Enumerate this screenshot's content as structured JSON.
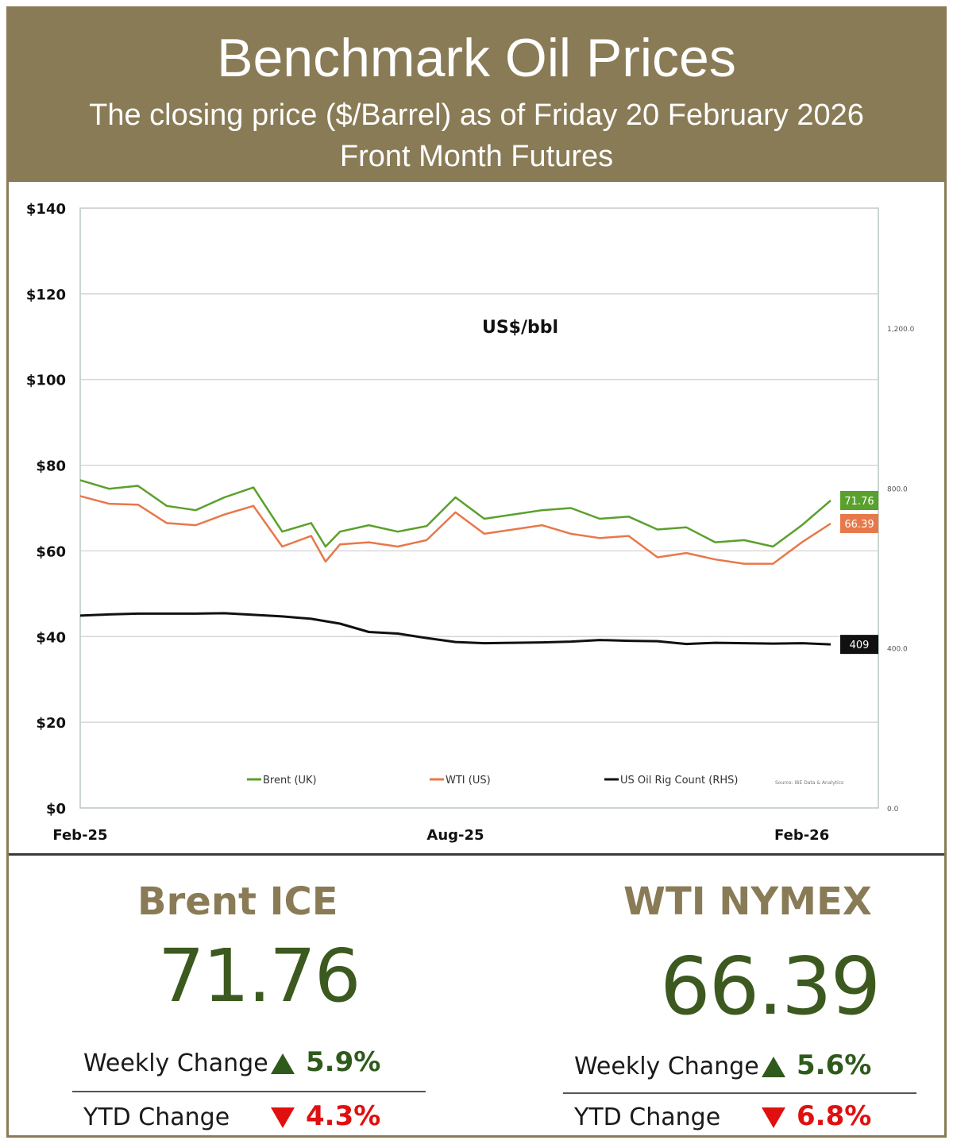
{
  "header": {
    "title": "Benchmark Oil Prices",
    "subtitle": "The closing price ($/Barrel) as of Friday 20 February 2026",
    "subtitle2": "Front Month  Futures"
  },
  "colors": {
    "header_bg": "#8a7b57",
    "brent": "#5aa02c",
    "wti": "#e8784a",
    "rig": "#111111",
    "up": "#2e5a1c",
    "down": "#e01010",
    "value_text": "#3c5a1f"
  },
  "chart_data": {
    "type": "line",
    "title": "US$/bbl",
    "x_labels": [
      "Feb-25",
      "Aug-25",
      "Feb-26"
    ],
    "x_range": [
      "2025-02-21",
      "2026-02-20"
    ],
    "ylim": [
      0,
      140
    ],
    "y_ticks": [
      "$0",
      "$20",
      "$40",
      "$60",
      "$80",
      "$100",
      "$120",
      "$140"
    ],
    "y2_ticks": [
      "0.0",
      "400.0",
      "800.0",
      "1,200.0"
    ],
    "y2lim": [
      0,
      1500
    ],
    "grid": true,
    "legend_position": "bottom",
    "source_note": "Source: IBE Data & Analytics",
    "series": [
      {
        "name": "Brent (UK)",
        "axis": "left",
        "color": "#5aa02c",
        "end_label": "71.76",
        "x": [
          "2025-02-21",
          "2025-03-07",
          "2025-03-21",
          "2025-04-04",
          "2025-04-18",
          "2025-05-02",
          "2025-05-16",
          "2025-05-30",
          "2025-06-13",
          "2025-06-20",
          "2025-06-27",
          "2025-07-11",
          "2025-07-25",
          "2025-08-08",
          "2025-08-22",
          "2025-09-05",
          "2025-09-19",
          "2025-10-03",
          "2025-10-17",
          "2025-10-31",
          "2025-11-14",
          "2025-11-28",
          "2025-12-12",
          "2025-12-26",
          "2026-01-09",
          "2026-01-23",
          "2026-02-06",
          "2026-02-20"
        ],
        "y": [
          76.5,
          74.5,
          75.2,
          70.5,
          69.5,
          72.5,
          74.8,
          64.5,
          66.5,
          61.0,
          64.5,
          66.0,
          64.5,
          65.8,
          72.5,
          67.5,
          68.5,
          69.5,
          70.0,
          67.5,
          68.0,
          65.0,
          65.5,
          62.0,
          62.5,
          61.0,
          66.0,
          71.76
        ]
      },
      {
        "name": "WTI (US)",
        "axis": "left",
        "color": "#e8784a",
        "end_label": "66.39",
        "x": [
          "2025-02-21",
          "2025-03-07",
          "2025-03-21",
          "2025-04-04",
          "2025-04-18",
          "2025-05-02",
          "2025-05-16",
          "2025-05-30",
          "2025-06-13",
          "2025-06-20",
          "2025-06-27",
          "2025-07-11",
          "2025-07-25",
          "2025-08-08",
          "2025-08-22",
          "2025-09-05",
          "2025-09-19",
          "2025-10-03",
          "2025-10-17",
          "2025-10-31",
          "2025-11-14",
          "2025-11-28",
          "2025-12-12",
          "2025-12-26",
          "2026-01-09",
          "2026-01-23",
          "2026-02-06",
          "2026-02-20"
        ],
        "y": [
          72.8,
          71.0,
          70.8,
          66.5,
          66.0,
          68.5,
          70.5,
          61.0,
          63.5,
          57.5,
          61.5,
          62.0,
          61.0,
          62.5,
          69.0,
          64.0,
          65.0,
          66.0,
          64.0,
          63.0,
          63.5,
          58.5,
          59.5,
          58.0,
          57.0,
          57.0,
          62.0,
          66.39
        ]
      },
      {
        "name": "US Oil Rig Count (RHS)",
        "axis": "right",
        "color": "#111111",
        "end_label": "409",
        "x": [
          "2025-02-21",
          "2025-03-07",
          "2025-03-21",
          "2025-04-04",
          "2025-04-18",
          "2025-05-02",
          "2025-05-16",
          "2025-05-30",
          "2025-06-13",
          "2025-06-27",
          "2025-07-11",
          "2025-07-25",
          "2025-08-08",
          "2025-08-22",
          "2025-09-05",
          "2025-09-19",
          "2025-10-03",
          "2025-10-17",
          "2025-10-31",
          "2025-11-14",
          "2025-11-28",
          "2025-12-12",
          "2025-12-26",
          "2026-01-09",
          "2026-01-23",
          "2026-02-06",
          "2026-02-20"
        ],
        "y": [
          481,
          484,
          486,
          486,
          486,
          487,
          483,
          479,
          473,
          461,
          440,
          436,
          425,
          415,
          412,
          413,
          414,
          416,
          420,
          418,
          417,
          410,
          413,
          412,
          411,
          412,
          409
        ]
      }
    ]
  },
  "brent": {
    "title": "Brent ICE",
    "price": "71.76",
    "weekly_label": "Weekly Change",
    "weekly_value": "5.9%",
    "weekly_dir": "up",
    "ytd_label": "YTD Change",
    "ytd_value": "4.3%",
    "ytd_dir": "down"
  },
  "wti": {
    "title": "WTI NYMEX",
    "price": "66.39",
    "weekly_label": "Weekly Change",
    "weekly_value": "5.6%",
    "weekly_dir": "up",
    "ytd_label": "YTD Change",
    "ytd_value": "6.8%",
    "ytd_dir": "down"
  }
}
